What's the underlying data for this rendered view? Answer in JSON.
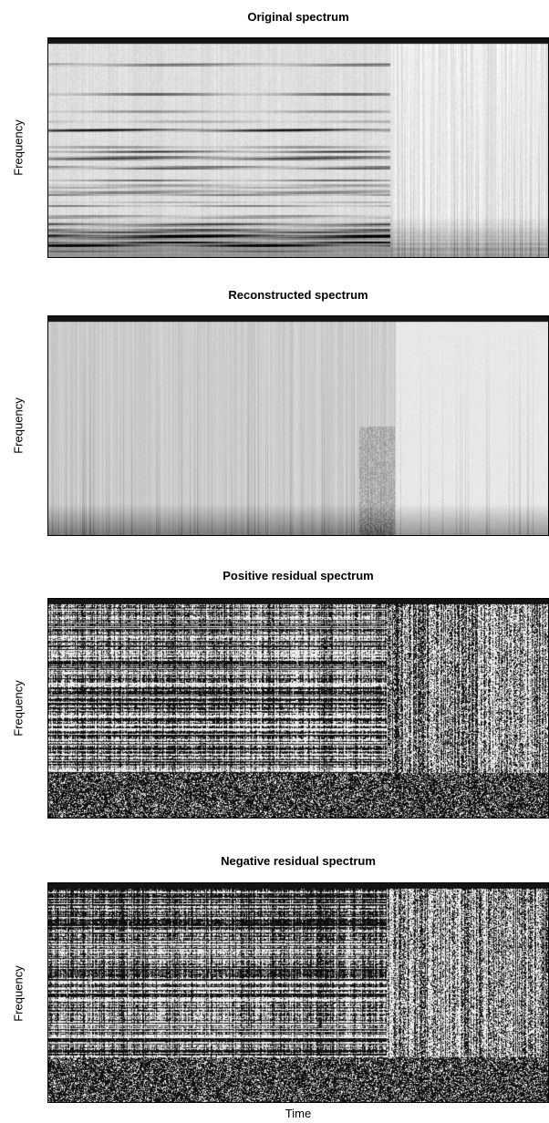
{
  "chart_data": [
    {
      "type": "heatmap",
      "title": "Original spectrum",
      "xlabel": "",
      "ylabel": "Frequency",
      "colormap": "grayscale",
      "grid": false
    },
    {
      "type": "heatmap",
      "title": "Reconstructed spectrum",
      "xlabel": "",
      "ylabel": "Frequency",
      "colormap": "grayscale",
      "grid": false
    },
    {
      "type": "heatmap",
      "title": "Positive residual spectrum",
      "xlabel": "",
      "ylabel": "Frequency",
      "colormap": "grayscale",
      "grid": false
    },
    {
      "type": "heatmap",
      "title": "Negative residual spectrum",
      "xlabel": "Time",
      "ylabel": "Frequency",
      "colormap": "grayscale",
      "grid": false
    }
  ]
}
